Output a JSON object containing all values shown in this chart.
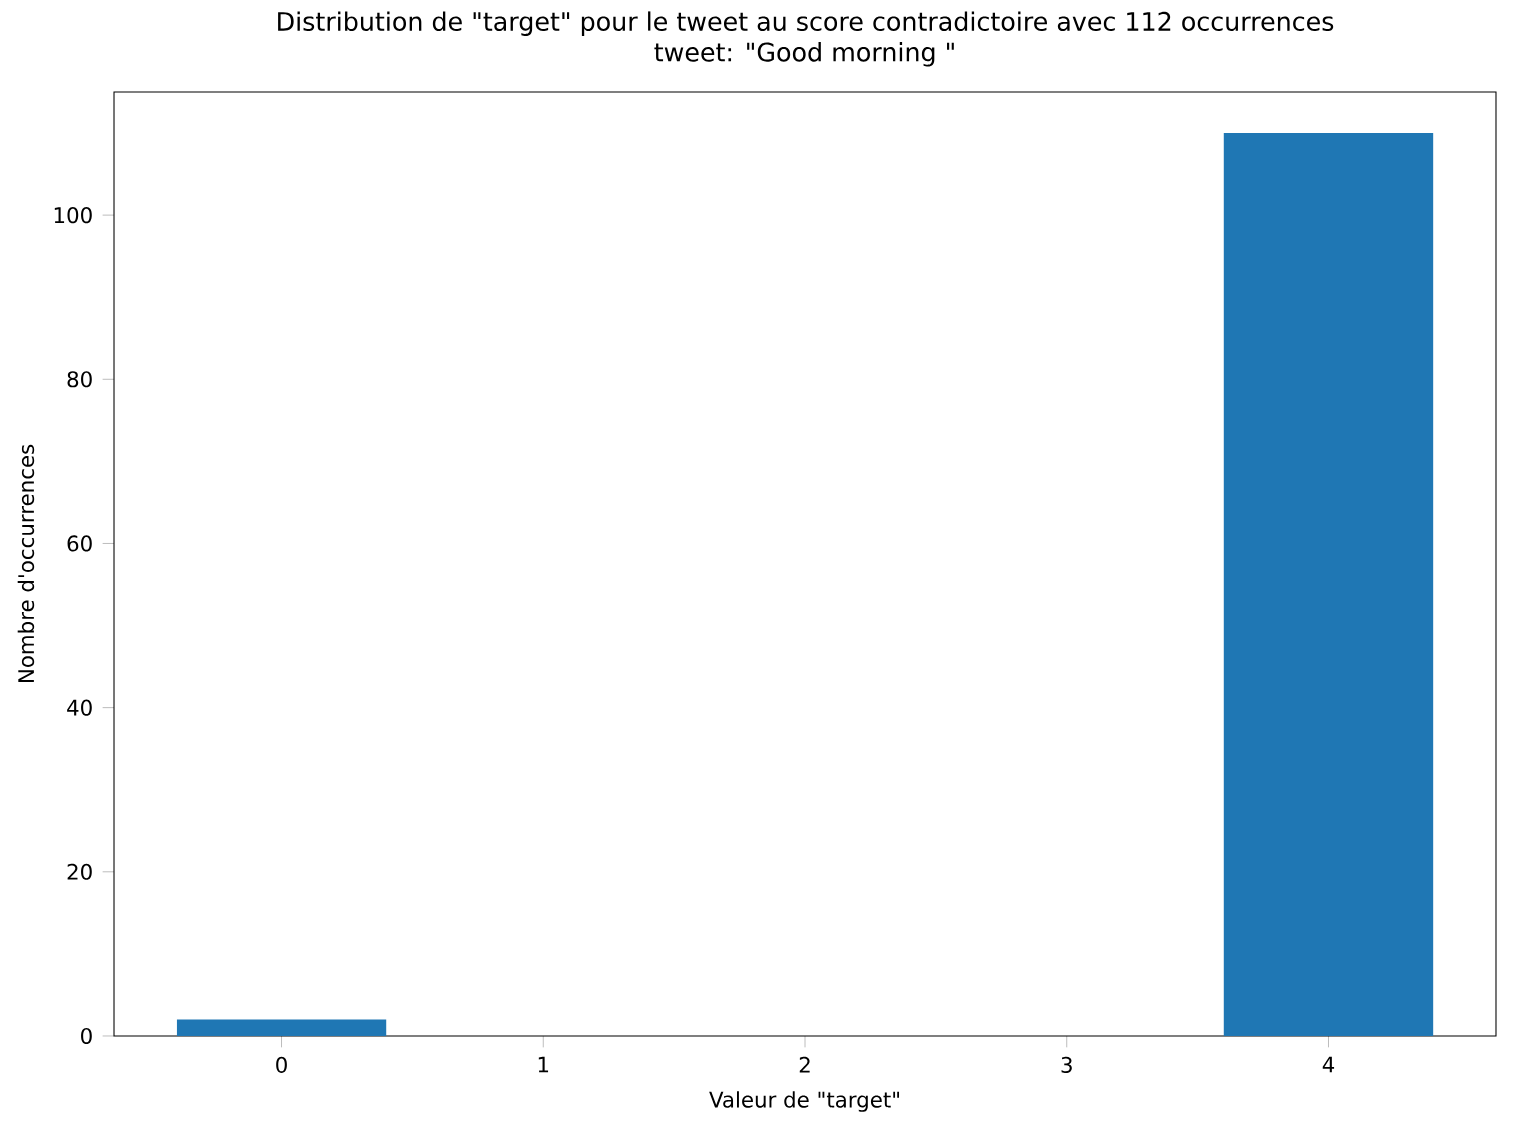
{
  "chart_data": {
    "type": "bar",
    "title": "Distribution de \"target\" pour le tweet au score contradictoire avec 112 occurrences",
    "subtitle": "tweet: \"Good morning \"",
    "xlabel": "Valeur de \"target\"",
    "ylabel": "Nombre d'occurrences",
    "x": [
      0,
      4
    ],
    "values": [
      2,
      110
    ],
    "color": "#1f77b4",
    "xlim": [
      -0.64,
      4.64
    ],
    "ylim": [
      0,
      115
    ],
    "xticks": [
      0,
      1,
      2,
      3,
      4
    ],
    "yticks": [
      0,
      20,
      40,
      60,
      80,
      100
    ]
  }
}
